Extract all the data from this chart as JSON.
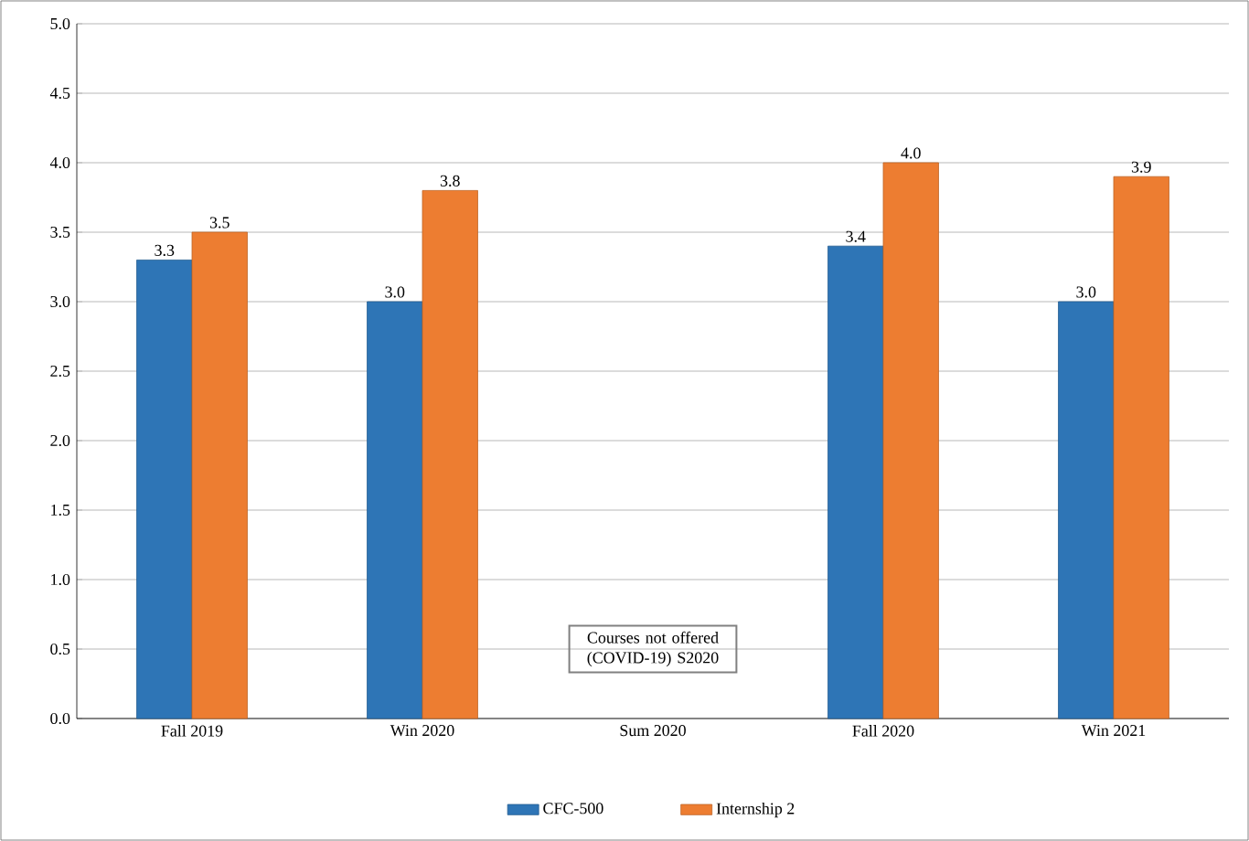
{
  "chart_data": {
    "type": "bar",
    "categories": [
      "Fall 2019",
      "Win 2020",
      "Sum 2020",
      "Fall 2020",
      "Win 2021"
    ],
    "series": [
      {
        "name": "CFC-500",
        "color": "#2e75b6",
        "values": [
          3.3,
          3.0,
          null,
          3.4,
          3.0
        ],
        "value_labels": [
          "3.3",
          "3.0",
          null,
          "3.4",
          "3.0"
        ]
      },
      {
        "name": "Internship 2",
        "color": "#ed7d31",
        "values": [
          3.5,
          3.8,
          null,
          4.0,
          3.9
        ],
        "value_labels": [
          "3.5",
          "3.8",
          null,
          "4.0",
          "3.9"
        ]
      }
    ],
    "ylim": [
      0,
      5
    ],
    "yticks": [
      {
        "value": 0,
        "label": "0.0"
      },
      {
        "value": 0.5,
        "label": "0.5"
      },
      {
        "value": 1,
        "label": "1.0"
      },
      {
        "value": 1.5,
        "label": "1.5"
      },
      {
        "value": 2,
        "label": "2.0"
      },
      {
        "value": 2.5,
        "label": "2.5"
      },
      {
        "value": 3,
        "label": "3.0"
      },
      {
        "value": 3.5,
        "label": "3.5"
      },
      {
        "value": 4,
        "label": "4.0"
      },
      {
        "value": 4.5,
        "label": "4.5"
      },
      {
        "value": 5,
        "label": "5.0"
      }
    ],
    "grid": "y",
    "legend": "bottom",
    "annotations": [
      "Courses not offered (COVID-19) S2020"
    ]
  }
}
